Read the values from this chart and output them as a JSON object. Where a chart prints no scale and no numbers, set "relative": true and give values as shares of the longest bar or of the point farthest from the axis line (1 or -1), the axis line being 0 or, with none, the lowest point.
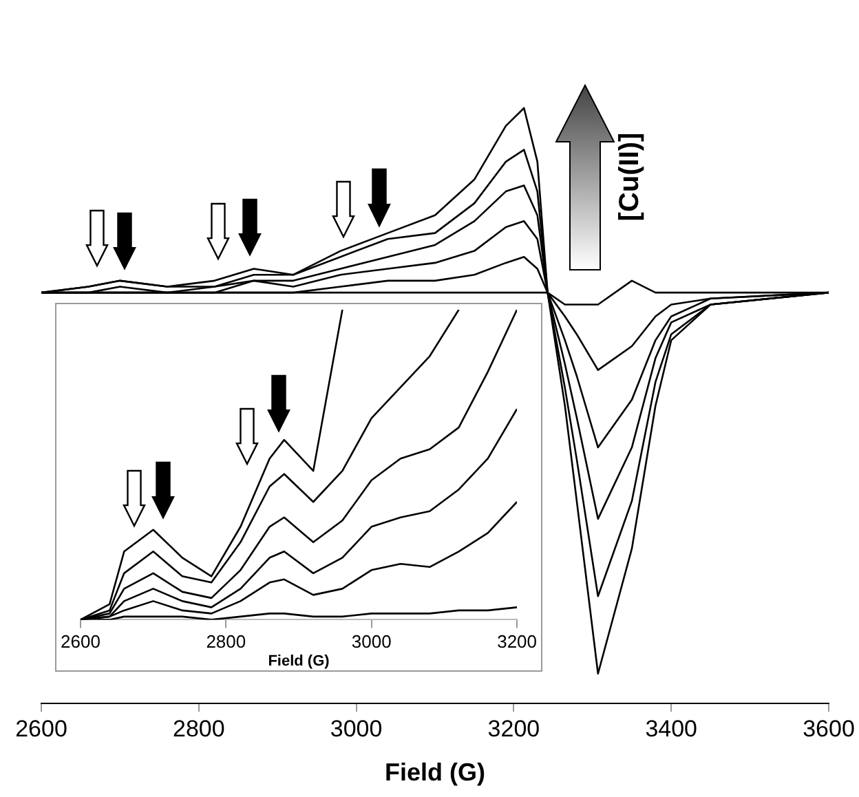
{
  "chart_data": [
    {
      "type": "line",
      "xlabel": "Field (G)",
      "relative": true,
      "xlim": [
        2600,
        3600
      ],
      "xticks": [
        2600,
        2800,
        3000,
        3200,
        3400,
        3600
      ],
      "annotations": [
        "[Cu(II)]"
      ],
      "x": [
        2600,
        2660,
        2700,
        2760,
        2820,
        2870,
        2920,
        2980,
        3040,
        3100,
        3150,
        3190,
        3213,
        3230,
        3243,
        3265,
        3280,
        3307,
        3350,
        3380,
        3400,
        3450,
        3600
      ],
      "series": [
        {
          "color": "#000000",
          "values": [
            0.69,
            0.7,
            0.71,
            0.7,
            0.71,
            0.73,
            0.72,
            0.76,
            0.79,
            0.82,
            0.88,
            0.97,
            1,
            0.91,
            0.69,
            0.5,
            0.34,
            0.05,
            0.26,
            0.5,
            0.61,
            0.67,
            0.69
          ]
        },
        {
          "color": "#000000",
          "values": [
            0.69,
            0.7,
            0.71,
            0.7,
            0.7,
            0.72,
            0.72,
            0.75,
            0.78,
            0.79,
            0.84,
            0.91,
            0.93,
            0.86,
            0.69,
            0.53,
            0.41,
            0.18,
            0.34,
            0.54,
            0.62,
            0.67,
            0.69
          ]
        },
        {
          "color": "#000000",
          "values": [
            0.69,
            0.69,
            0.7,
            0.69,
            0.7,
            0.71,
            0.71,
            0.73,
            0.75,
            0.77,
            0.81,
            0.86,
            0.87,
            0.82,
            0.69,
            0.57,
            0.48,
            0.31,
            0.43,
            0.58,
            0.64,
            0.67,
            0.69
          ]
        },
        {
          "color": "#000000",
          "values": [
            0.69,
            0.69,
            0.69,
            0.69,
            0.69,
            0.71,
            0.7,
            0.72,
            0.73,
            0.74,
            0.76,
            0.8,
            0.81,
            0.78,
            0.69,
            0.61,
            0.55,
            0.43,
            0.51,
            0.61,
            0.65,
            0.68,
            0.69
          ]
        },
        {
          "color": "#000000",
          "values": [
            0.69,
            0.69,
            0.69,
            0.69,
            0.69,
            0.69,
            0.69,
            0.7,
            0.71,
            0.71,
            0.72,
            0.74,
            0.75,
            0.73,
            0.69,
            0.65,
            0.62,
            0.56,
            0.6,
            0.65,
            0.67,
            0.68,
            0.69
          ]
        },
        {
          "color": "#000000",
          "values": [
            0.69,
            0.69,
            0.69,
            0.69,
            0.69,
            0.69,
            0.69,
            0.69,
            0.69,
            0.69,
            0.69,
            0.69,
            0.69,
            0.69,
            0.69,
            0.67,
            0.67,
            0.67,
            0.71,
            0.69,
            0.69,
            0.69,
            0.69
          ]
        }
      ]
    },
    {
      "type": "line",
      "xlabel": "Field (G)",
      "relative": true,
      "xlim": [
        2600,
        3200
      ],
      "xticks": [
        2600,
        2800,
        3000,
        3200
      ],
      "x": [
        2600,
        2640,
        2660,
        2700,
        2740,
        2780,
        2820,
        2860,
        2880,
        2920,
        2960,
        3000,
        3040,
        3080,
        3120,
        3160,
        3200
      ],
      "series": [
        {
          "color": "#000000",
          "values": [
            0,
            0.05,
            0.22,
            0.29,
            0.2,
            0.14,
            0.3,
            0.52,
            0.58,
            0.48,
            1,
            null,
            null,
            null,
            null,
            null,
            null
          ]
        },
        {
          "color": "#000000",
          "values": [
            0,
            0.03,
            0.15,
            0.22,
            0.14,
            0.12,
            0.25,
            0.43,
            0.47,
            0.38,
            0.48,
            0.65,
            0.75,
            0.85,
            1,
            null,
            null
          ]
        },
        {
          "color": "#000000",
          "values": [
            0,
            0.02,
            0.1,
            0.15,
            0.09,
            0.07,
            0.16,
            0.3,
            0.33,
            0.25,
            0.32,
            0.45,
            0.52,
            0.55,
            0.62,
            0.8,
            1
          ]
        },
        {
          "color": "#000000",
          "values": [
            0,
            0.01,
            0.06,
            0.1,
            0.06,
            0.04,
            0.1,
            0.2,
            0.22,
            0.15,
            0.2,
            0.3,
            0.33,
            0.35,
            0.42,
            0.52,
            0.68
          ]
        },
        {
          "color": "#000000",
          "values": [
            0,
            0.01,
            0.03,
            0.06,
            0.03,
            0.02,
            0.06,
            0.12,
            0.13,
            0.08,
            0.1,
            0.16,
            0.18,
            0.17,
            0.22,
            0.28,
            0.38
          ]
        },
        {
          "color": "#000000",
          "values": [
            0,
            0,
            0.01,
            0.01,
            0.01,
            0,
            0.01,
            0.02,
            0.02,
            0.01,
            0.01,
            0.02,
            0.02,
            0.02,
            0.03,
            0.03,
            0.04
          ]
        }
      ]
    }
  ]
}
